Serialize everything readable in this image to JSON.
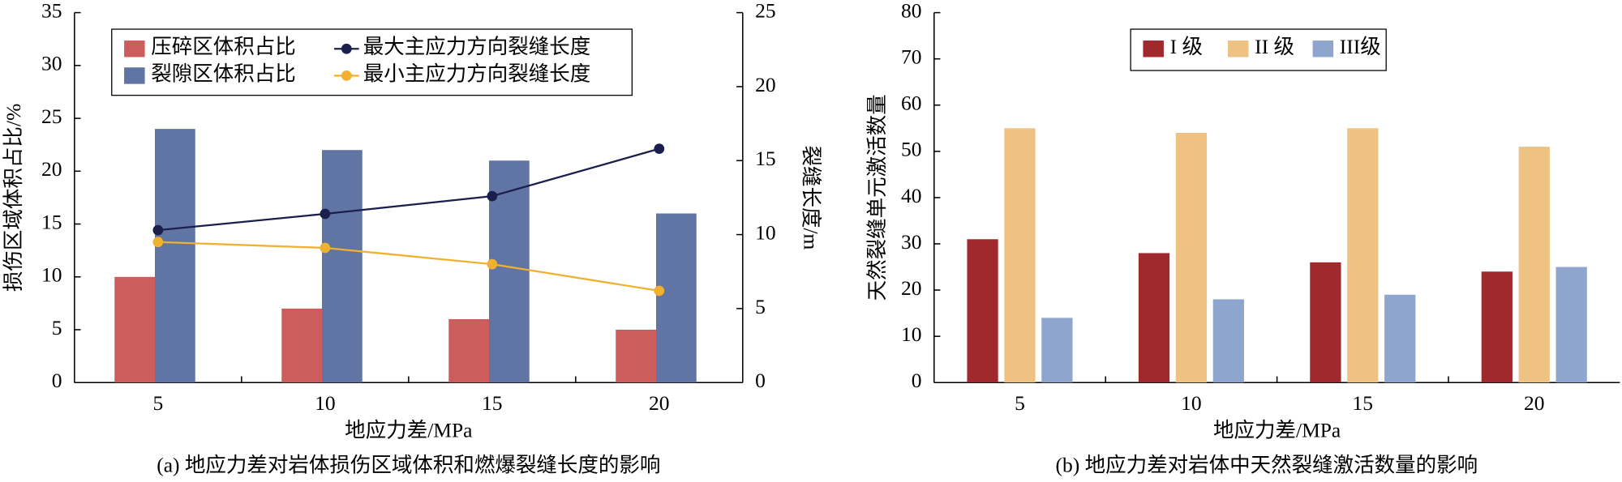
{
  "chart_data": [
    {
      "type": "bar",
      "caption": "(a) 地应力差对岩体损伤区域体积和燃爆裂缝长度的影响",
      "xlabel": "地应力差/MPa",
      "ylabel": "损伤区域体积占比/%",
      "y2label": "裂缝长度/m",
      "categories": [
        "5",
        "10",
        "15",
        "20"
      ],
      "ylim": [
        0,
        35
      ],
      "yticks": [
        0,
        5,
        10,
        15,
        20,
        25,
        30,
        35
      ],
      "y2lim": [
        0,
        25
      ],
      "y2ticks": [
        0,
        5,
        10,
        15,
        20,
        25
      ],
      "series": [
        {
          "name": "压碎区体积占比",
          "type": "bar",
          "color": "#cd5c5c",
          "values": [
            10,
            7,
            6,
            5
          ]
        },
        {
          "name": "裂隙区体积占比",
          "type": "bar",
          "color": "#6175a5",
          "values": [
            24,
            22,
            21,
            16
          ]
        },
        {
          "name": "最大主应力方向裂缝长度",
          "type": "line",
          "axis": "y2",
          "color": "#1b1f4e",
          "values": [
            10.3,
            11.4,
            12.6,
            15.8
          ]
        },
        {
          "name": "最小主应力方向裂缝长度",
          "type": "line",
          "axis": "y2",
          "color": "#f0b030",
          "values": [
            9.5,
            9.1,
            8.0,
            6.2
          ]
        }
      ]
    },
    {
      "type": "bar",
      "caption": "(b) 地应力差对岩体中天然裂缝激活数量的影响",
      "xlabel": "地应力差/MPa",
      "ylabel": "天然裂缝单元激活数量",
      "categories": [
        "5",
        "10",
        "15",
        "20"
      ],
      "ylim": [
        0,
        80
      ],
      "yticks": [
        0,
        10,
        20,
        30,
        40,
        50,
        60,
        70,
        80
      ],
      "series": [
        {
          "name": "I 级",
          "type": "bar",
          "color": "#a0292e",
          "values": [
            31,
            28,
            26,
            24
          ]
        },
        {
          "name": "II 级",
          "type": "bar",
          "color": "#edc283",
          "values": [
            55,
            54,
            55,
            51
          ]
        },
        {
          "name": "III级",
          "type": "bar",
          "color": "#8ea5cd",
          "values": [
            14,
            18,
            19,
            25
          ]
        }
      ]
    }
  ]
}
